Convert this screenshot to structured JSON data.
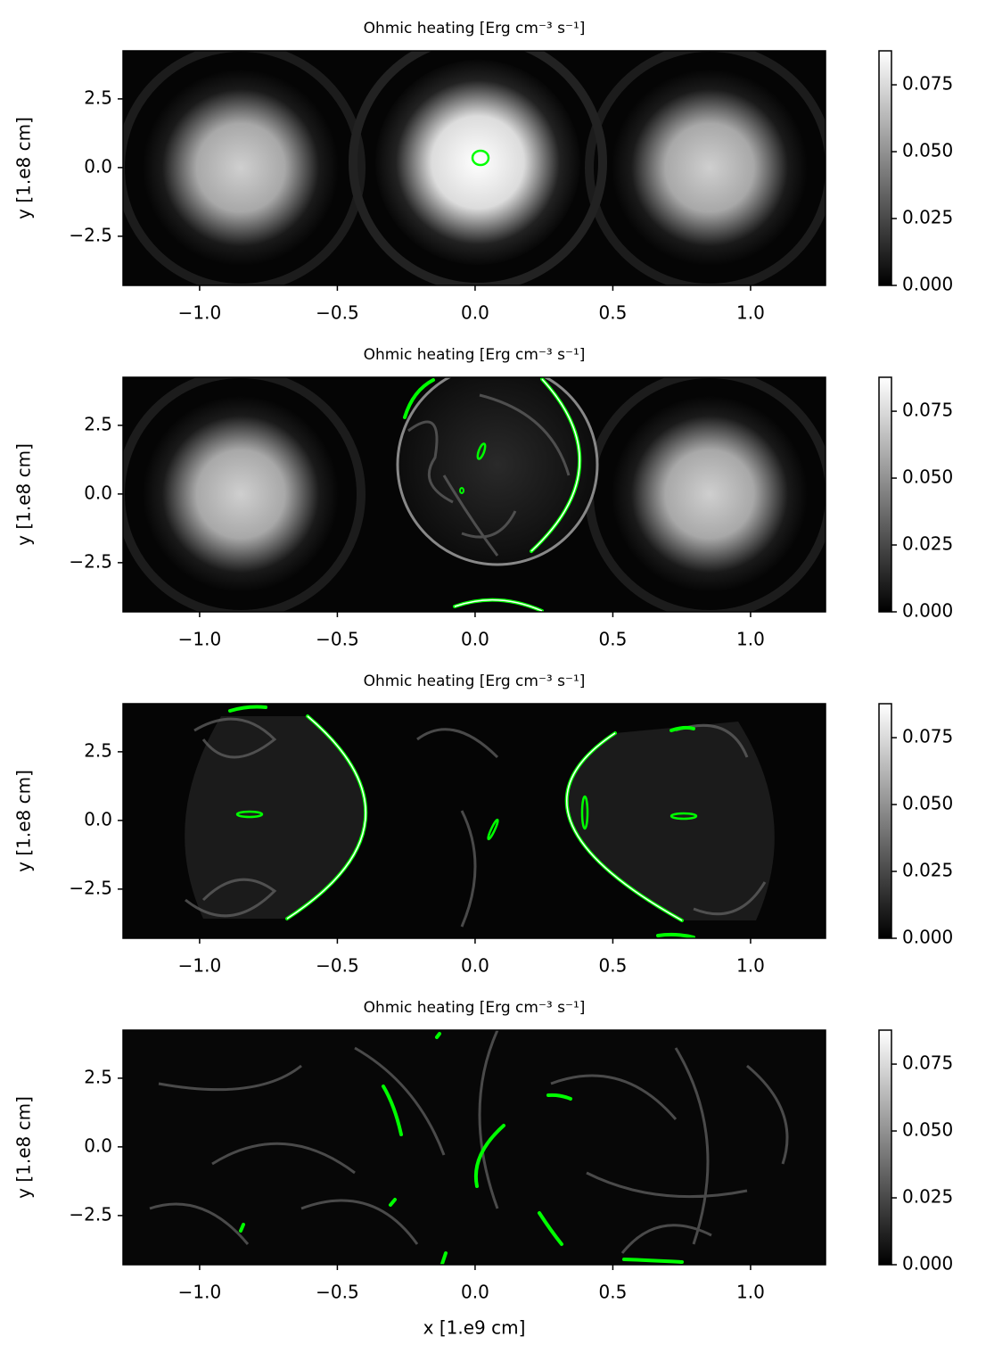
{
  "chart_data": [
    {
      "type": "heatmap",
      "title": "Ohmic heating [Erg cm⁻³ s⁻¹]",
      "ylabel": "y [1.e8 cm]",
      "colormap": "gray",
      "xlim": [
        -1.278,
        1.272
      ],
      "ylim": [
        -4.29,
        4.25
      ],
      "clim": [
        0,
        0.0877
      ],
      "xticks": [
        {
          "value": -1.0,
          "label": "−1.0"
        },
        {
          "value": -0.5,
          "label": "−0.5"
        },
        {
          "value": 0.0,
          "label": "0.0"
        },
        {
          "value": 0.5,
          "label": "0.5"
        },
        {
          "value": 1.0,
          "label": "1.0"
        }
      ],
      "yticks": [
        {
          "value": -2.5,
          "label": "−2.5"
        },
        {
          "value": 0.0,
          "label": "0.0"
        },
        {
          "value": 2.5,
          "label": "2.5"
        }
      ],
      "cticks": [
        {
          "value": 0,
          "label": "0.000"
        },
        {
          "value": 0.025,
          "label": "0.025"
        },
        {
          "value": 0.05,
          "label": "0.050"
        },
        {
          "value": 0.075,
          "label": "0.075"
        }
      ]
    },
    {
      "type": "heatmap",
      "title": "Ohmic heating [Erg cm⁻³ s⁻¹]",
      "ylabel": "y [1.e8 cm]",
      "colormap": "gray",
      "xlim": [
        -1.278,
        1.272
      ],
      "ylim": [
        -4.29,
        4.25
      ],
      "clim": [
        0,
        0.0877
      ],
      "xticks": [
        {
          "value": -1.0,
          "label": "−1.0"
        },
        {
          "value": -0.5,
          "label": "−0.5"
        },
        {
          "value": 0.0,
          "label": "0.0"
        },
        {
          "value": 0.5,
          "label": "0.5"
        },
        {
          "value": 1.0,
          "label": "1.0"
        }
      ],
      "yticks": [
        {
          "value": -2.5,
          "label": "−2.5"
        },
        {
          "value": 0.0,
          "label": "0.0"
        },
        {
          "value": 2.5,
          "label": "2.5"
        }
      ],
      "cticks": [
        {
          "value": 0,
          "label": "0.000"
        },
        {
          "value": 0.025,
          "label": "0.025"
        },
        {
          "value": 0.05,
          "label": "0.050"
        },
        {
          "value": 0.075,
          "label": "0.075"
        }
      ]
    },
    {
      "type": "heatmap",
      "title": "Ohmic heating [Erg cm⁻³ s⁻¹]",
      "ylabel": "y [1.e8 cm]",
      "colormap": "gray",
      "xlim": [
        -1.278,
        1.272
      ],
      "ylim": [
        -4.29,
        4.25
      ],
      "clim": [
        0,
        0.0877
      ],
      "xticks": [
        {
          "value": -1.0,
          "label": "−1.0"
        },
        {
          "value": -0.5,
          "label": "−0.5"
        },
        {
          "value": 0.0,
          "label": "0.0"
        },
        {
          "value": 0.5,
          "label": "0.5"
        },
        {
          "value": 1.0,
          "label": "1.0"
        }
      ],
      "yticks": [
        {
          "value": -2.5,
          "label": "−2.5"
        },
        {
          "value": 0.0,
          "label": "0.0"
        },
        {
          "value": 2.5,
          "label": "2.5"
        }
      ],
      "cticks": [
        {
          "value": 0,
          "label": "0.000"
        },
        {
          "value": 0.025,
          "label": "0.025"
        },
        {
          "value": 0.05,
          "label": "0.050"
        },
        {
          "value": 0.075,
          "label": "0.075"
        }
      ]
    },
    {
      "type": "heatmap",
      "title": "Ohmic heating [Erg cm⁻³ s⁻¹]",
      "ylabel": "y [1.e8 cm]",
      "xlabel": "x [1.e9 cm]",
      "colormap": "gray",
      "xlim": [
        -1.278,
        1.272
      ],
      "ylim": [
        -4.29,
        4.25
      ],
      "clim": [
        0,
        0.0877
      ],
      "xticks": [
        {
          "value": -1.0,
          "label": "−1.0"
        },
        {
          "value": -0.5,
          "label": "−0.5"
        },
        {
          "value": 0.0,
          "label": "0.0"
        },
        {
          "value": 0.5,
          "label": "0.5"
        },
        {
          "value": 1.0,
          "label": "1.0"
        }
      ],
      "yticks": [
        {
          "value": -2.5,
          "label": "−2.5"
        },
        {
          "value": 0.0,
          "label": "0.0"
        },
        {
          "value": 2.5,
          "label": "2.5"
        }
      ],
      "cticks": [
        {
          "value": 0,
          "label": "0.000"
        },
        {
          "value": 0.025,
          "label": "0.025"
        },
        {
          "value": 0.05,
          "label": "0.050"
        },
        {
          "value": 0.075,
          "label": "0.075"
        }
      ]
    }
  ]
}
